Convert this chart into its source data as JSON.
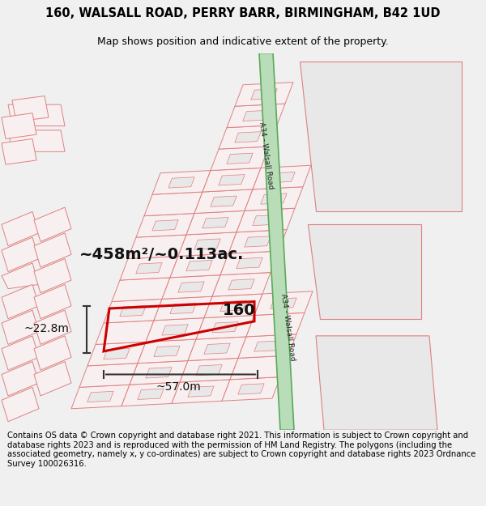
{
  "title_line1": "160, WALSALL ROAD, PERRY BARR, BIRMINGHAM, B42 1UD",
  "title_line2": "Map shows position and indicative extent of the property.",
  "footer_text": "Contains OS data © Crown copyright and database right 2021. This information is subject to Crown copyright and database rights 2023 and is reproduced with the permission of HM Land Registry. The polygons (including the associated geometry, namely x, y co-ordinates) are subject to Crown copyright and database rights 2023 Ordnance Survey 100026316.",
  "bg_color": "#f0f0f0",
  "map_bg": "#ffffff",
  "road_green_fill": "#b8ddb8",
  "road_green_edge": "#5aaa5a",
  "plot_edge": "#cc0000",
  "dim_color": "#333333",
  "area_text": "~458m²/~0.113ac.",
  "house_number": "160",
  "width_label": "~57.0m",
  "height_label": "~22.8m",
  "road_label": "A34 - Walsall Road",
  "parcel_fill": "#f8f0f0",
  "parcel_edge": "#e08080",
  "building_fill": "#e8e8e8",
  "building_edge": "#e08080",
  "large_fill": "#e8e8e8",
  "large_edge": "#e08080",
  "title_fontsize": 10.5,
  "subtitle_fontsize": 9,
  "footer_fontsize": 7.2,
  "area_fontsize": 14,
  "num_fontsize": 14
}
